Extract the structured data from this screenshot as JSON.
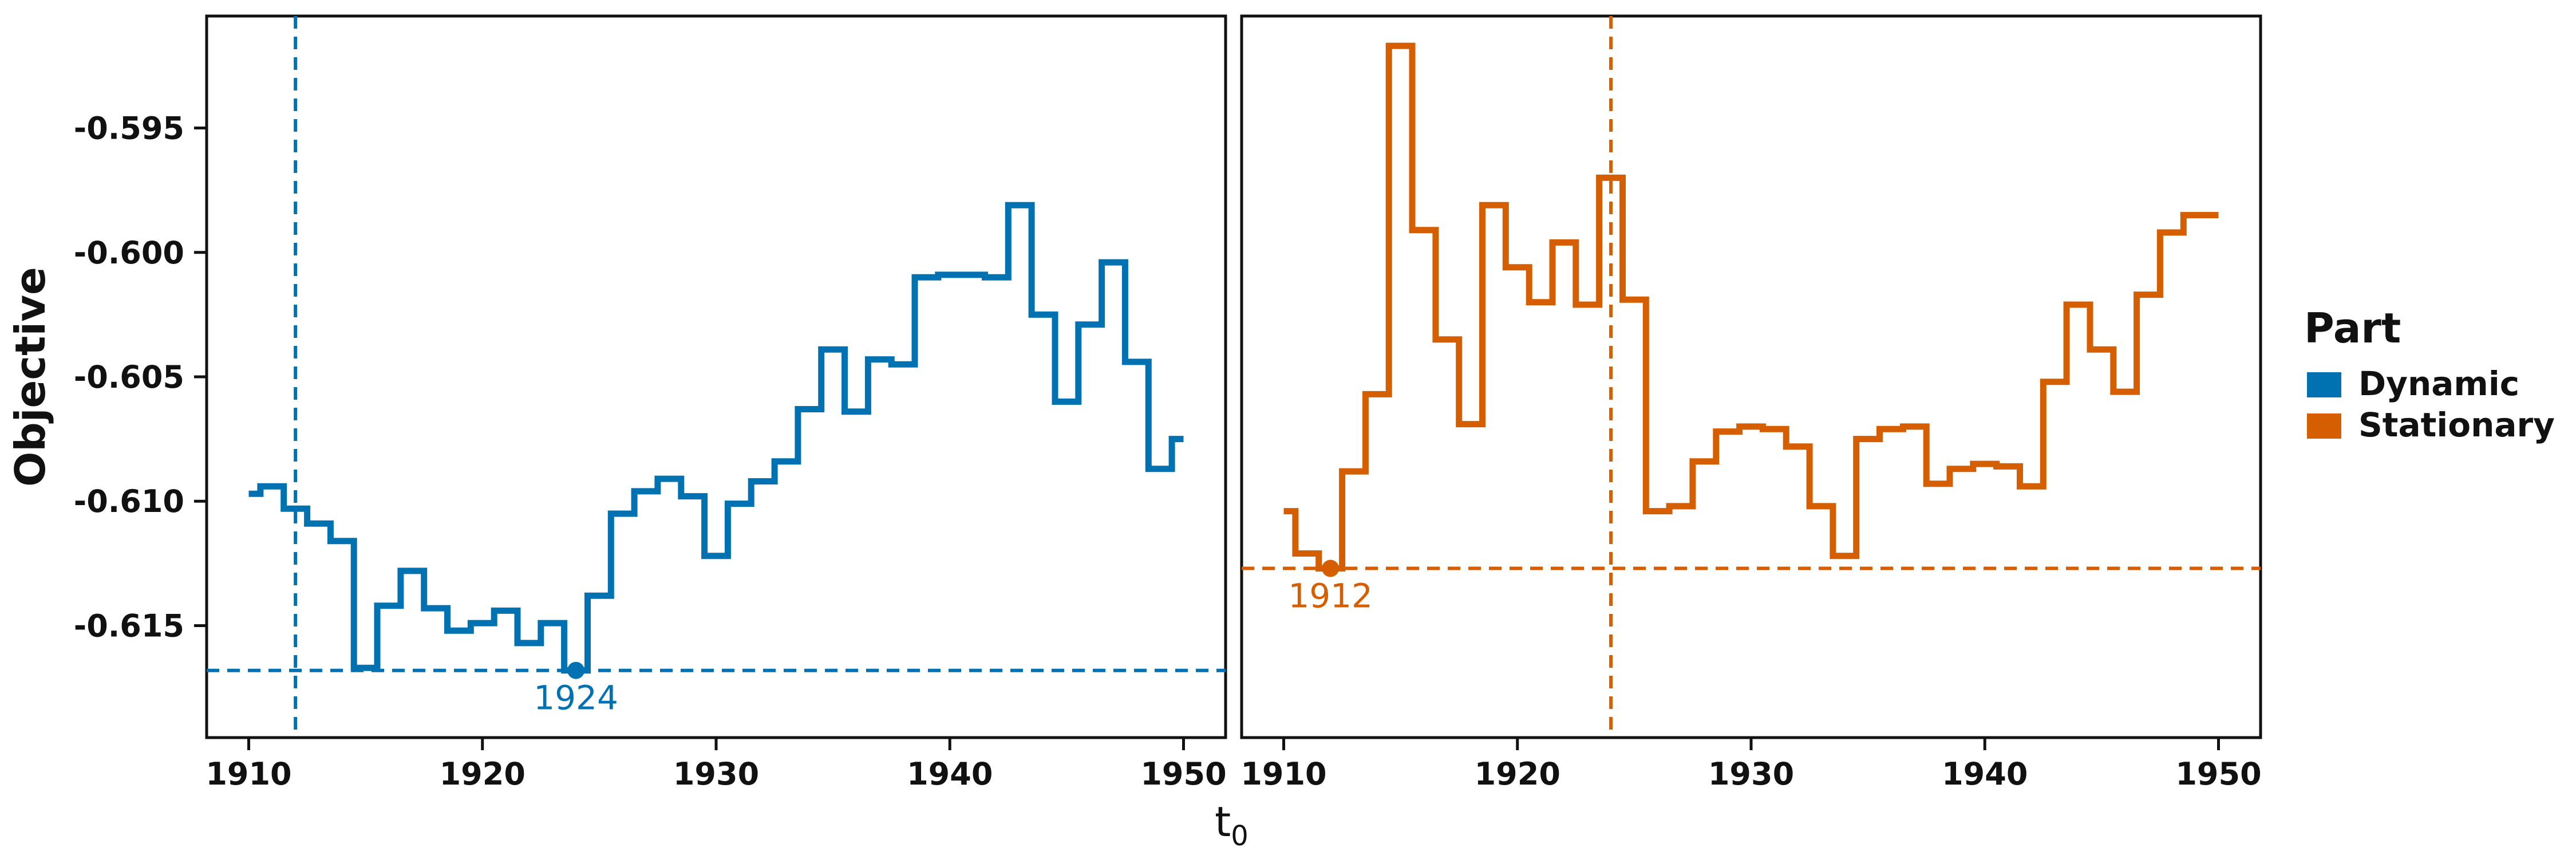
{
  "chart_data": {
    "type": "line",
    "step": true,
    "xlabel_base": "t",
    "xlabel_sub": "0",
    "ylabel": "Objective",
    "xlim": [
      1908.2,
      1951.8
    ],
    "ylim": [
      -0.6195,
      -0.5905
    ],
    "xticks": [
      1910,
      1920,
      1930,
      1940,
      1950
    ],
    "xtick_labels": [
      "1910",
      "1920",
      "1930",
      "1940",
      "1950"
    ],
    "yticks": [
      -0.595,
      -0.6,
      -0.605,
      -0.61,
      -0.615
    ],
    "ytick_labels": [
      "-0.595",
      "-0.600",
      "-0.605",
      "-0.610",
      "-0.615"
    ],
    "legend": {
      "title": "Part",
      "position": "right",
      "entries": [
        {
          "label": "Dynamic",
          "color": "#0072B2"
        },
        {
          "label": "Stationary",
          "color": "#D55E00"
        }
      ]
    },
    "panels": [
      {
        "series": "Dynamic",
        "color": "#0072B2",
        "x": [
          1910,
          1911,
          1912,
          1913,
          1914,
          1915,
          1916,
          1917,
          1918,
          1919,
          1920,
          1921,
          1922,
          1923,
          1924,
          1925,
          1926,
          1927,
          1928,
          1929,
          1930,
          1931,
          1932,
          1933,
          1934,
          1935,
          1936,
          1937,
          1938,
          1939,
          1940,
          1941,
          1942,
          1943,
          1944,
          1945,
          1946,
          1947,
          1948,
          1949,
          1950
        ],
        "y": [
          -0.6097,
          -0.6094,
          -0.6103,
          -0.6109,
          -0.6116,
          -0.6167,
          -0.6142,
          -0.6128,
          -0.6143,
          -0.6152,
          -0.6149,
          -0.6144,
          -0.6157,
          -0.6149,
          -0.6168,
          -0.6138,
          -0.6105,
          -0.6096,
          -0.6091,
          -0.6098,
          -0.6122,
          -0.6101,
          -0.6092,
          -0.6084,
          -0.6063,
          -0.6039,
          -0.6064,
          -0.6043,
          -0.6045,
          -0.601,
          -0.6009,
          -0.6009,
          -0.601,
          -0.5981,
          -0.6025,
          -0.606,
          -0.6029,
          -0.6004,
          -0.6044,
          -0.6087,
          -0.6075
        ],
        "vline_x": 1912,
        "hline_y": -0.6168,
        "min_point": {
          "x": 1924,
          "y": -0.6168,
          "label": "1924"
        }
      },
      {
        "series": "Stationary",
        "color": "#D55E00",
        "x": [
          1910,
          1911,
          1912,
          1913,
          1914,
          1915,
          1916,
          1917,
          1918,
          1919,
          1920,
          1921,
          1922,
          1923,
          1924,
          1925,
          1926,
          1927,
          1928,
          1929,
          1930,
          1931,
          1932,
          1933,
          1934,
          1935,
          1936,
          1937,
          1938,
          1939,
          1940,
          1941,
          1942,
          1943,
          1944,
          1945,
          1946,
          1947,
          1948,
          1949,
          1950
        ],
        "y": [
          -0.6104,
          -0.6121,
          -0.6127,
          -0.6088,
          -0.6057,
          -0.5917,
          -0.5991,
          -0.6035,
          -0.6069,
          -0.5981,
          -0.6006,
          -0.602,
          -0.5996,
          -0.6021,
          -0.597,
          -0.6019,
          -0.6104,
          -0.6102,
          -0.6084,
          -0.6072,
          -0.607,
          -0.6071,
          -0.6078,
          -0.6102,
          -0.6122,
          -0.6075,
          -0.6071,
          -0.607,
          -0.6093,
          -0.6087,
          -0.6085,
          -0.6086,
          -0.6094,
          -0.6052,
          -0.6021,
          -0.6039,
          -0.6056,
          -0.6017,
          -0.5992,
          -0.5985,
          -0.5985
        ],
        "vline_x": 1924,
        "hline_y": -0.6127,
        "min_point": {
          "x": 1912,
          "y": -0.6127,
          "label": "1912"
        }
      }
    ]
  }
}
